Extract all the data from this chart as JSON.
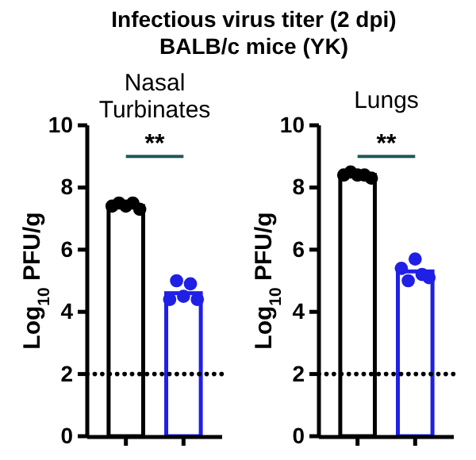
{
  "chart_data": [
    {
      "type": "bar",
      "title": "Nasal Turbinates",
      "ylabel": "Log$_{10}$ PFU/g",
      "categories": [
        null,
        null
      ],
      "tick_labels": "y",
      "ylim": [
        0,
        10
      ],
      "yticks": [
        0,
        2,
        4,
        6,
        8,
        10
      ],
      "grid": false,
      "marker": "circle",
      "series": [
        {
          "colors": [
            "#000000",
            "#1f1fe6"
          ],
          "values": [
            7.4,
            4.6
          ]
        },
        {
          "type": "scatter",
          "colors": [
            "#000000",
            "#1f1fe6"
          ],
          "values": [
            7.4,
            4.4
          ]
        },
        {
          "type": "scatter",
          "colors": [
            "#000000",
            "#1f1fe6"
          ],
          "values": [
            7.5,
            5.0
          ]
        },
        {
          "type": "scatter",
          "colors": [
            "#000000",
            "#1f1fe6"
          ],
          "values": [
            7.4,
            4.5
          ]
        },
        {
          "type": "scatter",
          "colors": [
            "#000000",
            "#1f1fe6"
          ],
          "values": [
            7.5,
            4.9
          ]
        },
        {
          "type": "scatter",
          "colors": [
            "#000000",
            "#1f1fe6"
          ],
          "values": [
            7.3,
            4.4
          ]
        }
      ],
      "ref_lines": [
        {
          "axis": "y",
          "value": 2,
          "line_style": "dotted",
          "color": "#000000"
        }
      ],
      "annotations": [
        "Infectious virus titer (2 dpi)",
        "BALB/c mice (YK)",
        "**"
      ]
    },
    {
      "type": "bar",
      "title": "Lungs",
      "ylabel": "Log$_{10}$ PFU/g",
      "categories": [
        null,
        null
      ],
      "tick_labels": "y",
      "ylim": [
        0,
        10
      ],
      "yticks": [
        0,
        2,
        4,
        6,
        8,
        10
      ],
      "grid": false,
      "marker": "circle",
      "series": [
        {
          "colors": [
            "#000000",
            "#1f1fe6"
          ],
          "values": [
            8.4,
            5.3
          ]
        },
        {
          "type": "scatter",
          "colors": [
            "#000000",
            "#1f1fe6"
          ],
          "values": [
            8.4,
            5.4
          ]
        },
        {
          "type": "scatter",
          "colors": [
            "#000000",
            "#1f1fe6"
          ],
          "values": [
            8.5,
            5.0
          ]
        },
        {
          "type": "scatter",
          "colors": [
            "#000000",
            "#1f1fe6"
          ],
          "values": [
            8.4,
            5.7
          ]
        },
        {
          "type": "scatter",
          "colors": [
            "#000000",
            "#1f1fe6"
          ],
          "values": [
            8.4,
            5.2
          ]
        },
        {
          "type": "scatter",
          "colors": [
            "#000000",
            "#1f1fe6"
          ],
          "values": [
            8.3,
            5.1
          ]
        }
      ],
      "ref_lines": [
        {
          "axis": "y",
          "value": 2,
          "line_style": "dotted",
          "color": "#000000"
        }
      ],
      "annotations": [
        "**"
      ]
    }
  ]
}
